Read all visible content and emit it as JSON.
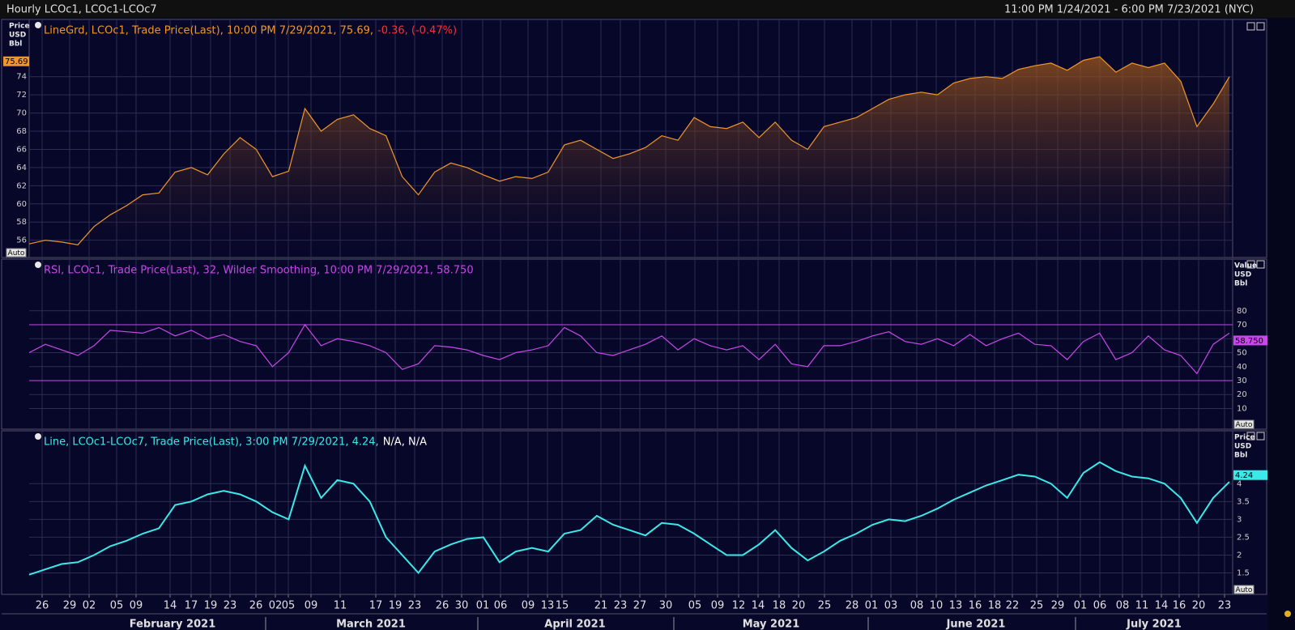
{
  "header": {
    "title": "Hourly LCOc1, LCOc1-LCOc7",
    "range": "11:00 PM 1/24/2021 - 6:00 PM 7/23/2021 (NYC)"
  },
  "chart_data": [
    {
      "type": "area",
      "legend": "LineGrd, LCOc1, Trade Price(Last), 10:00 PM 7/29/2021, 75.69,",
      "legend_change": "-0.36, (-0.47%)",
      "y_label": [
        "Price",
        "USD",
        "Bbl"
      ],
      "color": "#f0962c",
      "change_color": "#ff3030",
      "auto_button": "Auto",
      "last_value": 75.69,
      "ylim": [
        54.1,
        80.3
      ],
      "yticks": [
        56,
        58,
        60,
        62,
        64,
        66,
        68,
        70,
        72,
        74
      ],
      "values": [
        55.6,
        56.0,
        55.8,
        55.5,
        57.5,
        58.8,
        59.8,
        61.0,
        61.2,
        63.5,
        64.0,
        63.2,
        65.5,
        67.3,
        66.0,
        63.0,
        63.6,
        70.5,
        68.0,
        69.3,
        69.8,
        68.3,
        67.5,
        63.0,
        61.0,
        63.5,
        64.5,
        64.0,
        63.2,
        62.5,
        63.0,
        62.8,
        63.5,
        66.5,
        67.0,
        66.0,
        65.0,
        65.5,
        66.2,
        67.5,
        67.0,
        69.5,
        68.5,
        68.3,
        69.0,
        67.3,
        69.0,
        67.0,
        66.0,
        68.5,
        69.0,
        69.5,
        70.5,
        71.5,
        72.0,
        72.3,
        72.0,
        73.3,
        73.8,
        74.0,
        73.8,
        74.8,
        75.2,
        75.5,
        74.7,
        75.8,
        76.2,
        74.5,
        75.5,
        75.0,
        75.5,
        73.5,
        68.5,
        71.0,
        74.0
      ]
    },
    {
      "type": "line",
      "legend": "RSI, LCOc1, Trade Price(Last),  32, Wilder Smoothing, 10:00 PM 7/29/2021, 58.750",
      "y_label": [
        "Value",
        "USD",
        "Bbl"
      ],
      "color": "#c848e8",
      "auto_button": "Auto",
      "last_value": {
        "value": 58.75,
        "label": "58.750"
      },
      "bands": [
        30,
        70
      ],
      "ylim": [
        -4.8,
        117
      ],
      "yticks": [
        10,
        20,
        30,
        40,
        50,
        60,
        70,
        80
      ],
      "values": [
        50,
        56,
        52,
        48,
        55,
        66,
        65,
        64,
        68,
        62,
        66,
        60,
        63,
        58,
        55,
        40,
        50,
        70,
        55,
        60,
        58,
        55,
        50,
        38,
        42,
        55,
        54,
        52,
        48,
        45,
        50,
        52,
        55,
        68,
        62,
        50,
        48,
        52,
        56,
        62,
        52,
        60,
        55,
        52,
        55,
        45,
        56,
        42,
        40,
        55,
        55,
        58,
        62,
        65,
        58,
        56,
        60,
        55,
        63,
        55,
        60,
        64,
        56,
        55,
        45,
        58,
        64,
        45,
        50,
        62,
        52,
        48,
        35,
        56,
        64
      ]
    },
    {
      "type": "line",
      "legend": "Line, LCOc1-LCOc7, Trade Price(Last), 3:00 PM 7/29/2021, 4.24,",
      "legend_change": "N/A, N/A",
      "y_label": [
        "Price",
        "USD",
        "Bbl"
      ],
      "color": "#3ce8e8",
      "change_color": "#ffffff",
      "auto_button": "Auto",
      "last_value": 4.24,
      "ylim": [
        0.9,
        5.48
      ],
      "yticks": [
        1.5,
        2,
        2.5,
        3,
        3.5,
        4
      ],
      "values": [
        1.45,
        1.6,
        1.75,
        1.8,
        2.0,
        2.25,
        2.4,
        2.6,
        2.75,
        3.4,
        3.5,
        3.7,
        3.8,
        3.7,
        3.5,
        3.2,
        3.0,
        4.5,
        3.6,
        4.1,
        4.0,
        3.5,
        2.5,
        2.0,
        1.5,
        2.1,
        2.3,
        2.45,
        2.5,
        1.8,
        2.1,
        2.2,
        2.1,
        2.6,
        2.7,
        3.1,
        2.85,
        2.7,
        2.55,
        2.9,
        2.85,
        2.6,
        2.3,
        2.0,
        2.0,
        2.3,
        2.7,
        2.2,
        1.85,
        2.1,
        2.4,
        2.6,
        2.85,
        3.0,
        2.95,
        3.1,
        3.3,
        3.55,
        3.75,
        3.95,
        4.1,
        4.25,
        4.2,
        4.0,
        3.6,
        4.3,
        4.6,
        4.35,
        4.2,
        4.15,
        4.0,
        3.6,
        2.9,
        3.6,
        4.05
      ]
    }
  ],
  "x_axis": {
    "days": [
      "26",
      "29",
      "02",
      "05",
      "09",
      "14",
      "17",
      "19",
      "23",
      "26",
      "02",
      "05",
      "09",
      "11",
      "17",
      "19",
      "23",
      "26",
      "30",
      "01",
      "06",
      "09",
      "13",
      "15",
      "21",
      "23",
      "27",
      "30",
      "05",
      "09",
      "12",
      "14",
      "18",
      "20",
      "25",
      "28",
      "01",
      "03",
      "08",
      "10",
      "13",
      "16",
      "18",
      "22",
      "25",
      "29",
      "01",
      "06",
      "08",
      "11",
      "14",
      "16",
      "20",
      "23"
    ],
    "months": [
      "February 2021",
      "March 2021",
      "April 2021",
      "May 2021",
      "June 2021",
      "July 2021"
    ]
  }
}
